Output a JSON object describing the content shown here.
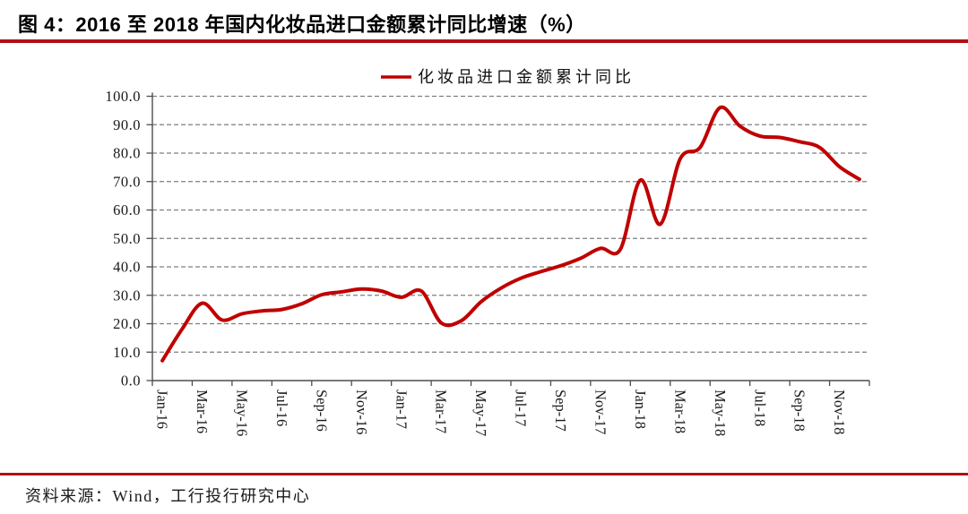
{
  "header": {
    "title": "图 4：2016 至 2018 年国内化妆品进口金额累计同比增速（%）"
  },
  "legend": {
    "label": "化妆品进口金额累计同比"
  },
  "footer": {
    "source": "资料来源：Wind，工行投行研究中心"
  },
  "colors": {
    "line": "#C00000",
    "rule": "#B01015",
    "grid": "#7F7F7F",
    "axis": "#4D4D4D",
    "text": "#1A1A1A"
  },
  "chart_data": {
    "type": "line",
    "title": "2016至2018年国内化妆品进口金额累计同比增速（%）",
    "x": [
      "Jan-16",
      "Feb-16",
      "Mar-16",
      "Apr-16",
      "May-16",
      "Jun-16",
      "Jul-16",
      "Aug-16",
      "Sep-16",
      "Oct-16",
      "Nov-16",
      "Dec-16",
      "Jan-17",
      "Feb-17",
      "Mar-17",
      "Apr-17",
      "May-17",
      "Jun-17",
      "Jul-17",
      "Aug-17",
      "Sep-17",
      "Oct-17",
      "Nov-17",
      "Dec-17",
      "Jan-18",
      "Feb-18",
      "Mar-18",
      "Apr-18",
      "May-18",
      "Jun-18",
      "Jul-18",
      "Aug-18",
      "Sep-18",
      "Oct-18",
      "Nov-18",
      "Dec-18"
    ],
    "series": [
      {
        "name": "化妆品进口金额累计同比",
        "color": "#C00000",
        "values": [
          7.0,
          18.2,
          27.2,
          21.3,
          23.5,
          24.5,
          25.0,
          27.0,
          30.2,
          31.2,
          32.2,
          31.5,
          29.3,
          31.5,
          20.3,
          21.0,
          27.7,
          32.5,
          36.0,
          38.3,
          40.4,
          43.0,
          46.5,
          46.2,
          70.5,
          55.0,
          78.0,
          82.0,
          96.0,
          89.5,
          86.0,
          85.5,
          84.0,
          82.0,
          75.2,
          70.8
        ]
      }
    ],
    "x_tick_labels": [
      "Jan-16",
      "Mar-16",
      "May-16",
      "Jul-16",
      "Sep-16",
      "Nov-16",
      "Jan-17",
      "Mar-17",
      "May-17",
      "Jul-17",
      "Sep-17",
      "Nov-17",
      "Jan-18",
      "Mar-18",
      "May-18",
      "Jul-18",
      "Sep-18",
      "Nov-18"
    ],
    "ylim": [
      0,
      100
    ],
    "y_tick_step": 10,
    "y_tick_labels": [
      "0.0",
      "10.0",
      "20.0",
      "30.0",
      "40.0",
      "50.0",
      "60.0",
      "70.0",
      "80.0",
      "90.0",
      "100.0"
    ],
    "grid": "horizontal-dashed",
    "legend_position": "top-center",
    "smooth": true
  }
}
